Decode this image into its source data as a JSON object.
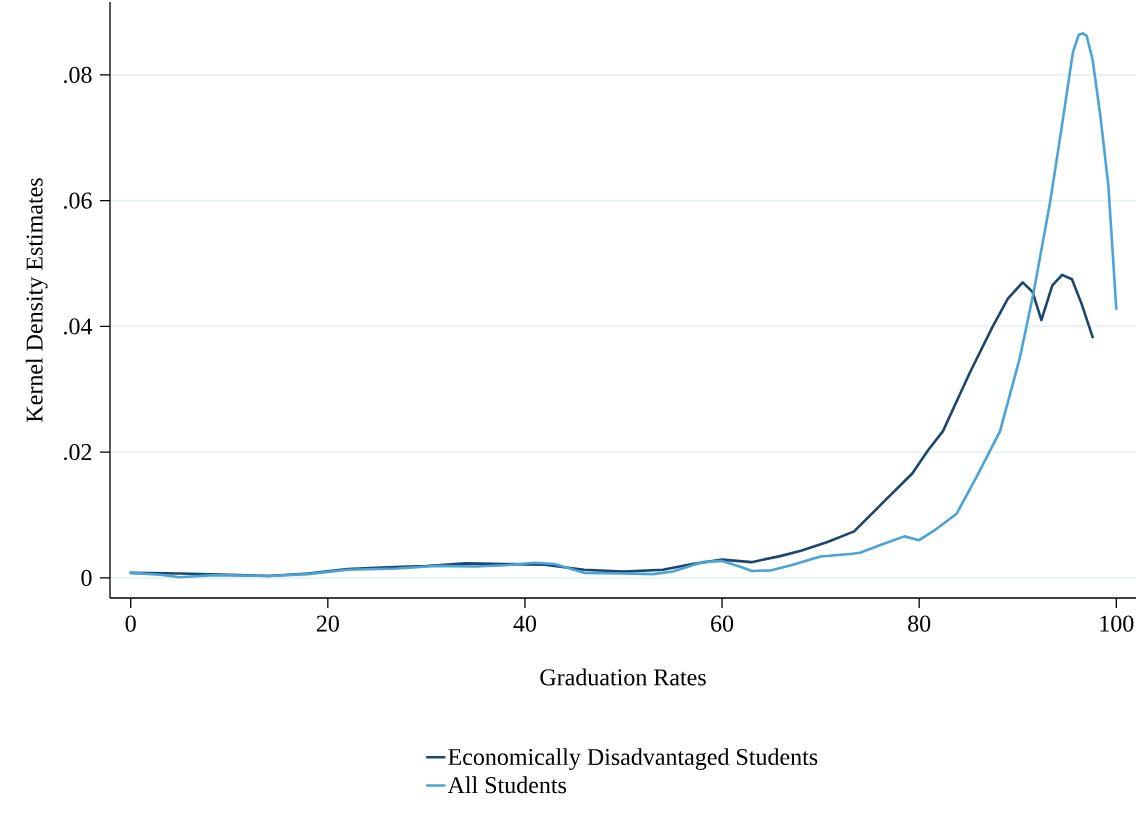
{
  "chart_data": {
    "type": "line",
    "xlabel": "Graduation Rates",
    "ylabel": "Kernel Density Estimates",
    "xlim": [
      -2.1,
      102
    ],
    "ylim": [
      -0.0032,
      0.0916
    ],
    "xticks": [
      0,
      20,
      40,
      60,
      80,
      100
    ],
    "yticks": [
      0,
      {
        "value": 0.02,
        "label": ".02"
      },
      {
        "value": 0.04,
        "label": ".04"
      },
      {
        "value": 0.06,
        "label": ".06"
      },
      {
        "value": 0.08,
        "label": ".08"
      }
    ],
    "grid": "y",
    "legend": "bottom",
    "line_style": "solid",
    "marker": "none",
    "series": [
      {
        "name": "Economically Disadvantaged Students",
        "color": "#1a476f",
        "x": [
          0,
          5,
          10,
          14,
          18,
          22,
          26,
          30,
          34,
          38,
          42,
          46,
          50,
          54,
          57,
          60,
          63,
          66,
          68,
          70.7,
          73.4,
          76.6,
          79.3,
          80.9,
          82.4,
          85.1,
          87.4,
          89,
          90.5,
          91.5,
          92.4,
          93.5,
          94.5,
          95.5,
          96.5,
          97.6
        ],
        "values": [
          0.0008,
          0.0007,
          0.0005,
          0.0003,
          0.0007,
          0.0014,
          0.0017,
          0.0019,
          0.0023,
          0.0022,
          0.0021,
          0.0013,
          0.001,
          0.0013,
          0.0022,
          0.0029,
          0.0025,
          0.0035,
          0.0043,
          0.0057,
          0.0074,
          0.0124,
          0.0166,
          0.0203,
          0.0233,
          0.0325,
          0.0398,
          0.0444,
          0.047,
          0.0455,
          0.041,
          0.0465,
          0.0482,
          0.0475,
          0.0435,
          0.0383
        ]
      },
      {
        "name": "All Students",
        "color": "#4ba3d8",
        "x": [
          0,
          3,
          5,
          8,
          10,
          14,
          18,
          22,
          27,
          31,
          35,
          38,
          41,
          43,
          46,
          50,
          53,
          55,
          58,
          60,
          62,
          63,
          65,
          67,
          70,
          73,
          74,
          76,
          78.5,
          80,
          81.5,
          83.8,
          85.9,
          88.2,
          90.2,
          91.6,
          93.3,
          94.5,
          95.6,
          96.2,
          96.6,
          97,
          97.6,
          98.4,
          99.2,
          100
        ],
        "values": [
          0.0008,
          0.0005,
          0.0001,
          0.0004,
          0.0004,
          0.0003,
          0.0006,
          0.0013,
          0.0015,
          0.0019,
          0.0018,
          0.002,
          0.0024,
          0.0022,
          0.0008,
          0.0007,
          0.0006,
          0.001,
          0.0025,
          0.0027,
          0.0017,
          0.0011,
          0.0012,
          0.002,
          0.0034,
          0.0038,
          0.004,
          0.0052,
          0.0066,
          0.006,
          0.0075,
          0.0102,
          0.0163,
          0.0233,
          0.0349,
          0.0453,
          0.0599,
          0.0721,
          0.0836,
          0.0864,
          0.0866,
          0.0862,
          0.0824,
          0.0733,
          0.0623,
          0.0428
        ]
      }
    ]
  }
}
